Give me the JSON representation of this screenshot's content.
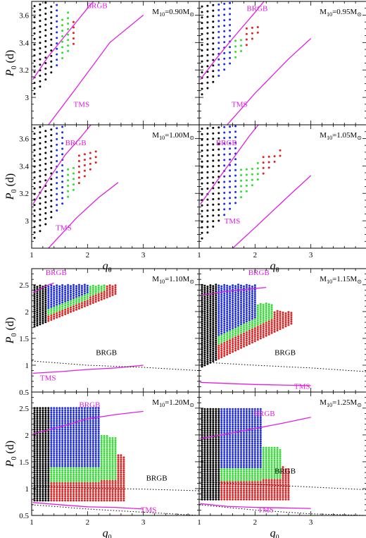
{
  "axis_labels": {
    "y_main": "P",
    "y_sub": "0",
    "y_unit": "(d)",
    "x_main": "q",
    "x_sub": "0"
  },
  "colors": {
    "magenta": "#e020e0",
    "black": "#000000",
    "blue": "#1e2ee0",
    "green": "#33dd33",
    "red": "#e02222"
  },
  "chart_data": [
    {
      "type": "scatter",
      "panel": 1,
      "mass_text": "M",
      "mass_sub": "10",
      "mass_value": "=0.90M",
      "xlim": [
        1,
        4
      ],
      "ylim": [
        2.8,
        3.7
      ],
      "yticks": [
        3,
        3.2,
        3.4,
        3.6
      ],
      "xticks": [],
      "xtick_labels": [],
      "curves": [
        {
          "name": "BRGB",
          "label_pos": [
            1.98,
            3.65
          ],
          "points": [
            [
              1.02,
              3.13
            ],
            [
              1.3,
              3.3
            ],
            [
              1.6,
              3.45
            ],
            [
              2.0,
              3.65
            ],
            [
              2.15,
              3.72
            ]
          ]
        },
        {
          "name": "TMS",
          "label_pos": [
            1.75,
            2.93
          ],
          "points": [
            [
              1.3,
              2.8
            ],
            [
              1.8,
              3.07
            ],
            [
              2.4,
              3.4
            ],
            [
              3.0,
              3.6
            ]
          ]
        }
      ],
      "boundaries": [
        {
          "color": "black",
          "q_max": 1.35
        },
        {
          "color": "blue",
          "q_max": 1.5
        },
        {
          "color": "green",
          "q_max": 1.65
        },
        {
          "color": "red",
          "q_max": 1.8
        }
      ],
      "grid": {
        "q_start": 1.05,
        "q_step": 0.1,
        "p_step": 0.04,
        "p_top": 3.69,
        "p_min_at_q1": 3.0,
        "slope": 0.52,
        "red_top_at_q1": 3.42,
        "red_top_slope": 0.2,
        "min_extra": 0.0,
        "green_top_at_q1": 3.3,
        "green_top_slope": 0.5
      }
    },
    {
      "type": "scatter",
      "panel": 2,
      "mass_text": "M",
      "mass_sub": "10",
      "mass_value": "=0.95M",
      "xlim": [
        1,
        4
      ],
      "ylim": [
        2.8,
        3.7
      ],
      "yticks": [],
      "xticks": [],
      "xtick_labels": [],
      "curves": [
        {
          "name": "BRGB",
          "label_pos": [
            1.85,
            3.63
          ],
          "points": [
            [
              1.02,
              3.13
            ],
            [
              1.3,
              3.28
            ],
            [
              1.6,
              3.43
            ],
            [
              2.0,
              3.62
            ],
            [
              2.2,
              3.72
            ]
          ]
        },
        {
          "name": "TMS",
          "label_pos": [
            1.58,
            2.93
          ],
          "points": [
            [
              1.5,
              2.8
            ],
            [
              2.0,
              3.03
            ],
            [
              2.6,
              3.28
            ],
            [
              3.0,
              3.43
            ]
          ]
        }
      ],
      "boundaries": [
        {
          "color": "black",
          "q_max": 1.3
        },
        {
          "color": "blue",
          "q_max": 1.6
        },
        {
          "color": "green",
          "q_max": 1.8
        },
        {
          "color": "red",
          "q_max": 2.1
        }
      ],
      "grid": {
        "q_start": 1.05,
        "q_step": 0.1,
        "p_step": 0.04,
        "p_top": 3.69,
        "p_min_at_q1": 3.0,
        "slope": 0.45,
        "red_top_at_q1": 3.46,
        "red_top_slope": 0.06,
        "min_extra": 0.0,
        "green_top_at_q1": 3.4,
        "green_top_slope": 0.05
      }
    },
    {
      "type": "scatter",
      "panel": 3,
      "mass_text": "M",
      "mass_sub": "10",
      "mass_value": "=1.00M",
      "xlim": [
        1,
        4
      ],
      "ylim": [
        2.8,
        3.7
      ],
      "yticks": [
        3,
        3.2,
        3.4,
        3.6
      ],
      "xticks": [
        1,
        2,
        3
      ],
      "xtick_labels": [
        "1",
        "2",
        "3"
      ],
      "curves": [
        {
          "name": "BRGB",
          "label_pos": [
            1.6,
            3.55
          ],
          "points": [
            [
              1.02,
              3.12
            ],
            [
              1.3,
              3.3
            ],
            [
              1.6,
              3.48
            ],
            [
              1.9,
              3.62
            ],
            [
              2.1,
              3.72
            ]
          ]
        },
        {
          "name": "TMS",
          "label_pos": [
            1.43,
            2.93
          ],
          "points": [
            [
              1.3,
              2.8
            ],
            [
              1.8,
              3.02
            ],
            [
              2.2,
              3.17
            ],
            [
              2.55,
              3.28
            ]
          ]
        }
      ],
      "boundaries": [
        {
          "color": "black",
          "q_max": 1.35
        },
        {
          "color": "blue",
          "q_max": 1.6
        },
        {
          "color": "green",
          "q_max": 1.8
        },
        {
          "color": "red",
          "q_max": 2.2
        }
      ],
      "grid": {
        "q_start": 1.05,
        "q_step": 0.1,
        "p_step": 0.04,
        "p_top": 3.69,
        "p_min_at_q1": 2.85,
        "slope": 0.5,
        "red_top_at_q1": 3.42,
        "red_top_slope": 0.08,
        "min_extra": 0.0,
        "green_top_at_q1": 3.36,
        "green_top_slope": 0.08
      }
    },
    {
      "type": "scatter",
      "panel": 4,
      "mass_text": "M",
      "mass_sub": "10",
      "mass_value": "=1.05M",
      "xlim": [
        1,
        4
      ],
      "ylim": [
        2.8,
        3.7
      ],
      "yticks": [],
      "xticks": [
        1,
        2,
        3
      ],
      "xtick_labels": [
        "1",
        "2",
        "3"
      ],
      "curves": [
        {
          "name": "BRGB",
          "label_pos": [
            1.3,
            3.55
          ],
          "points": [
            [
              1.02,
              3.12
            ],
            [
              1.3,
              3.28
            ],
            [
              1.6,
              3.45
            ],
            [
              1.9,
              3.62
            ],
            [
              2.1,
              3.72
            ]
          ]
        },
        {
          "name": "TMS",
          "label_pos": [
            1.45,
            2.98
          ],
          "points": [
            [
              1.6,
              2.8
            ],
            [
              2.0,
              2.95
            ],
            [
              2.6,
              3.18
            ],
            [
              3.0,
              3.33
            ]
          ]
        }
      ],
      "boundaries": [
        {
          "color": "black",
          "q_max": 1.35
        },
        {
          "color": "blue",
          "q_max": 1.7
        },
        {
          "color": "green",
          "q_max": 2.1
        },
        {
          "color": "red",
          "q_max": 2.45
        }
      ],
      "grid": {
        "q_start": 1.05,
        "q_step": 0.1,
        "p_step": 0.04,
        "p_top": 3.69,
        "p_min_at_q1": 2.85,
        "slope": 0.43,
        "red_top_at_q1": 3.4,
        "red_top_slope": 0.08,
        "min_extra": 0.0,
        "green_top_at_q1": 3.32,
        "green_top_slope": 0.1
      }
    },
    {
      "type": "scatter",
      "panel": 5,
      "mass_text": "M",
      "mass_sub": "10",
      "mass_value": "=1.10M",
      "xlim": [
        1,
        4
      ],
      "ylim": [
        0.5,
        2.8
      ],
      "yticks": [
        0.5,
        1,
        1.5,
        2,
        2.5
      ],
      "xticks": [],
      "xtick_labels": [],
      "curves": [
        {
          "name": "BRGB",
          "label_pos": [
            1.25,
            2.68
          ],
          "points": [
            [
              1.02,
              2.35
            ],
            [
              1.3,
              2.5
            ],
            [
              1.4,
              2.53
            ]
          ]
        },
        {
          "name": "TMS",
          "label_pos": [
            1.15,
            0.72
          ],
          "points": [
            [
              1.02,
              0.85
            ],
            [
              1.5,
              0.88
            ],
            [
              2.0,
              0.92
            ],
            [
              2.5,
              0.95
            ],
            [
              3.0,
              1.0
            ]
          ]
        }
      ],
      "dashed": [
        {
          "name": "BRGB",
          "label_pos": [
            2.15,
            1.19
          ],
          "points": [
            [
              1.0,
              1.08
            ],
            [
              2.0,
              1.0
            ],
            [
              3.0,
              0.96
            ],
            [
              4.0,
              0.9
            ]
          ]
        }
      ],
      "boundaries": [
        {
          "color": "black",
          "q_max": 1.25
        },
        {
          "color": "blue",
          "q_max": 2.0
        },
        {
          "color": "green",
          "q_max": 2.3
        },
        {
          "color": "red",
          "q_max": 2.5
        }
      ],
      "grid": {
        "q_start": 1.05,
        "q_step": 0.05,
        "p_step": 0.04,
        "p_top": 2.5,
        "p_min_at_q1": 1.7,
        "slope": 0.42,
        "red_top_at_q1": 2.5,
        "red_top_slope": 0.0,
        "min_extra": 0.0,
        "green_top_at_q1": 2.5,
        "green_top_slope": 0.0,
        "red_band": 0.25,
        "green_band": 0.22
      }
    },
    {
      "type": "scatter",
      "panel": 6,
      "mass_text": "M",
      "mass_sub": "10",
      "mass_value": "=1.15M",
      "xlim": [
        1,
        4
      ],
      "ylim": [
        0.5,
        2.8
      ],
      "yticks": [],
      "xticks": [],
      "xtick_labels": [],
      "curves": [
        {
          "name": "BRGB",
          "label_pos": [
            1.88,
            2.68
          ],
          "points": [
            [
              1.02,
              2.3
            ],
            [
              1.5,
              2.38
            ],
            [
              2.0,
              2.43
            ],
            [
              2.2,
              2.45
            ]
          ]
        },
        {
          "name": "TMS",
          "label_pos": [
            2.7,
            0.56
          ],
          "points": [
            [
              1.02,
              0.68
            ],
            [
              1.5,
              0.66
            ],
            [
              2.0,
              0.64
            ],
            [
              2.5,
              0.63
            ],
            [
              3.0,
              0.62
            ]
          ]
        }
      ],
      "dashed": [
        {
          "name": "BRGB",
          "label_pos": [
            2.35,
            1.19
          ],
          "points": [
            [
              1.0,
              1.06
            ],
            [
              2.0,
              1.0
            ],
            [
              3.0,
              0.95
            ],
            [
              4.0,
              0.88
            ]
          ]
        }
      ],
      "boundaries": [
        {
          "color": "black",
          "q_max": 1.3
        },
        {
          "color": "blue",
          "q_max": 2.0
        },
        {
          "color": "green",
          "q_max": 2.3
        },
        {
          "color": "red",
          "q_max": 2.65
        }
      ],
      "grid": {
        "q_start": 1.05,
        "q_step": 0.05,
        "p_step": 0.04,
        "p_top": 2.5,
        "p_min_at_q1": 0.95,
        "slope": 0.5,
        "red_top_at_q1": 2.15,
        "red_top_slope": -0.1,
        "min_extra": 0.0,
        "green_top_at_q1": 2.15,
        "green_top_slope": 0.0,
        "red_band": 0.55,
        "green_band": 0.4
      }
    },
    {
      "type": "scatter",
      "panel": 7,
      "mass_text": "M",
      "mass_sub": "10",
      "mass_value": "=1.20M",
      "xlim": [
        1,
        4
      ],
      "ylim": [
        0.5,
        2.8
      ],
      "yticks": [
        0.5,
        1,
        1.5,
        2,
        2.5
      ],
      "xticks": [
        1,
        2,
        3
      ],
      "xtick_labels": [
        "1",
        "2",
        "3"
      ],
      "curves": [
        {
          "name": "BRGB",
          "label_pos": [
            1.85,
            2.52
          ],
          "points": [
            [
              1.02,
              2.02
            ],
            [
              1.5,
              2.15
            ],
            [
              2.0,
              2.3
            ],
            [
              2.5,
              2.38
            ],
            [
              3.0,
              2.44
            ]
          ]
        },
        {
          "name": "TMS",
          "label_pos": [
            2.95,
            0.56
          ],
          "points": [
            [
              1.02,
              0.74
            ],
            [
              1.5,
              0.7
            ],
            [
              2.0,
              0.66
            ],
            [
              2.5,
              0.65
            ],
            [
              3.0,
              0.62
            ]
          ]
        }
      ],
      "dashed": [
        {
          "name": "BRGB",
          "label_pos": [
            3.05,
            1.15
          ],
          "points": [
            [
              1.0,
              1.05
            ],
            [
              2.0,
              1.01
            ],
            [
              3.0,
              0.99
            ],
            [
              4.0,
              0.96
            ]
          ]
        },
        {
          "name": "",
          "label_pos": [
            0,
            0
          ],
          "points": [
            [
              1.0,
              0.7
            ],
            [
              2.0,
              0.62
            ],
            [
              3.0,
              0.56
            ],
            [
              4.0,
              0.5
            ]
          ]
        }
      ],
      "boundaries": [
        {
          "color": "black",
          "q_max": 1.3
        },
        {
          "color": "blue",
          "q_max": 2.2
        },
        {
          "color": "green",
          "q_max": 2.5
        },
        {
          "color": "red",
          "q_max": 2.65
        }
      ],
      "grid": {
        "q_start": 1.05,
        "q_step": 0.05,
        "p_step": 0.04,
        "p_top": 2.5,
        "p_min_at_q1": 0.78,
        "slope": 0.0,
        "red_top_at_q1": 2.1,
        "red_top_slope": -0.3,
        "min_extra": 0.0,
        "green_top_at_q1": 2.25,
        "green_top_slope": -0.2,
        "red_band": 0.8,
        "green_band": 0.6
      }
    },
    {
      "type": "scatter",
      "panel": 8,
      "mass_text": "M",
      "mass_sub": "10",
      "mass_value": "=1.25M",
      "xlim": [
        1,
        4
      ],
      "ylim": [
        0.5,
        2.8
      ],
      "yticks": [],
      "xticks": [
        1,
        2,
        3
      ],
      "xtick_labels": [
        "1",
        "2",
        "3"
      ],
      "curves": [
        {
          "name": "BRGB",
          "label_pos": [
            1.98,
            2.35
          ],
          "points": [
            [
              1.02,
              1.93
            ],
            [
              1.5,
              2.02
            ],
            [
              2.0,
              2.12
            ],
            [
              2.5,
              2.22
            ],
            [
              3.0,
              2.33
            ]
          ]
        },
        {
          "name": "TMS",
          "label_pos": [
            2.05,
            0.56
          ],
          "points": [
            [
              1.02,
              0.72
            ],
            [
              1.5,
              0.67
            ],
            [
              2.0,
              0.65
            ],
            [
              2.5,
              0.64
            ],
            [
              3.0,
              0.63
            ]
          ]
        }
      ],
      "dashed": [
        {
          "name": "BRGB",
          "label_pos": [
            2.35,
            1.28
          ],
          "points": [
            [
              1.0,
              1.12
            ],
            [
              2.0,
              1.08
            ],
            [
              3.0,
              1.03
            ],
            [
              4.0,
              0.98
            ]
          ]
        },
        {
          "name": "",
          "label_pos": [
            0,
            0
          ],
          "points": [
            [
              1.0,
              0.7
            ],
            [
              2.0,
              0.6
            ],
            [
              3.0,
              0.53
            ],
            [
              4.0,
              0.5
            ]
          ]
        }
      ],
      "boundaries": [
        {
          "color": "black",
          "q_max": 1.35
        },
        {
          "color": "blue",
          "q_max": 2.1
        },
        {
          "color": "green",
          "q_max": 2.45
        },
        {
          "color": "red",
          "q_max": 2.6
        }
      ],
      "grid": {
        "q_start": 1.05,
        "q_step": 0.05,
        "p_step": 0.04,
        "p_top": 2.5,
        "p_min_at_q1": 0.8,
        "slope": 0.0,
        "red_top_at_q1": 1.7,
        "red_top_slope": -0.2,
        "min_extra": 0.0,
        "green_top_at_q1": 1.9,
        "green_top_slope": -0.1,
        "red_band": 0.75,
        "green_band": 0.55
      }
    }
  ]
}
